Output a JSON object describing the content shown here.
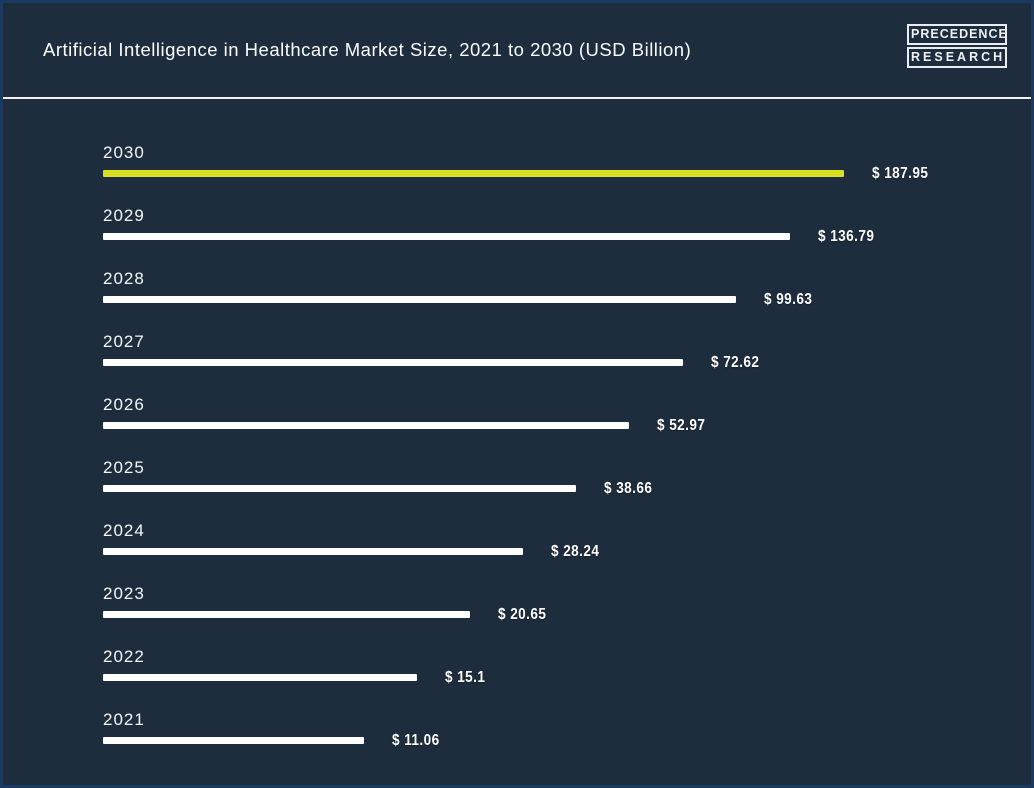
{
  "header": {
    "title": "Artificial Intelligence in Healthcare Market Size, 2021 to 2030 (USD Billion)",
    "logo": {
      "line1": "PRECEDENCE",
      "line2": "RESEARCH"
    }
  },
  "colors": {
    "background": "#1e2d3d",
    "frame_border": "#1b3a61",
    "divider": "#f2f4f5",
    "bar_default": "#ffffff",
    "bar_highlight": "#d8e021",
    "text": "#ffffff"
  },
  "chart_data": {
    "type": "bar",
    "orientation": "horizontal",
    "title": "Artificial Intelligence in Healthcare Market Size, 2021 to 2030 (USD Billion)",
    "unit": "USD Billion",
    "scale": "log",
    "grid": false,
    "legend": false,
    "categories": [
      "2030",
      "2029",
      "2028",
      "2027",
      "2026",
      "2025",
      "2024",
      "2023",
      "2022",
      "2021"
    ],
    "values": [
      187.95,
      136.79,
      99.63,
      72.62,
      52.97,
      38.66,
      28.24,
      20.65,
      15.1,
      11.06
    ],
    "value_labels": [
      "$ 187.95",
      "$ 136.79",
      "$ 99.63",
      "$ 72.62",
      "$ 52.97",
      "$ 38.66",
      "$ 28.24",
      "$ 20.65",
      "$ 15.1",
      "$ 11.06"
    ],
    "highlight_category": "2030"
  }
}
